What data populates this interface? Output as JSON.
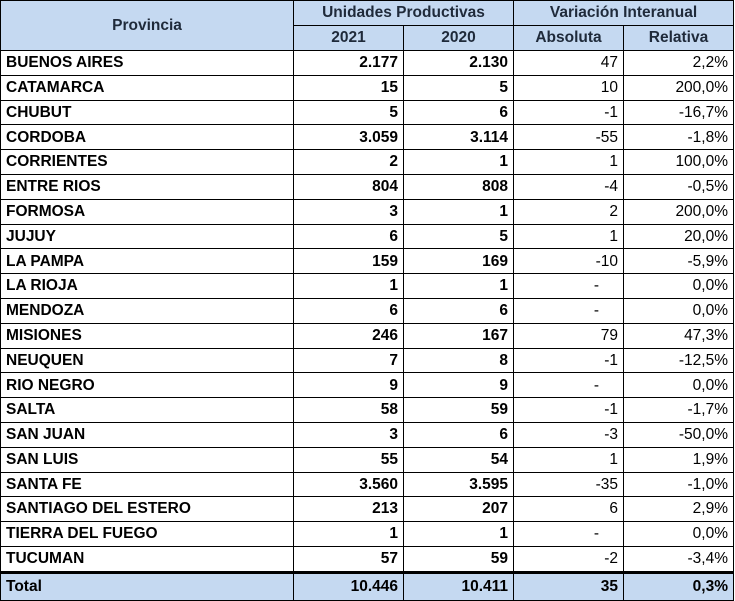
{
  "header": {
    "provincia": "Provincia",
    "unidades": "Unidades Productivas",
    "variacion": "Variación Interanual",
    "y2021": "2021",
    "y2020": "2020",
    "absoluta": "Absoluta",
    "relativa": "Relativa"
  },
  "rows": [
    {
      "prov": "BUENOS AIRES",
      "y2021": "2.177",
      "y2020": "2.130",
      "abs": "47",
      "rel": "2,2%"
    },
    {
      "prov": "CATAMARCA",
      "y2021": "15",
      "y2020": "5",
      "abs": "10",
      "rel": "200,0%"
    },
    {
      "prov": "CHUBUT",
      "y2021": "5",
      "y2020": "6",
      "abs": "-1",
      "rel": "-16,7%"
    },
    {
      "prov": "CORDOBA",
      "y2021": "3.059",
      "y2020": "3.114",
      "abs": "-55",
      "rel": "-1,8%"
    },
    {
      "prov": "CORRIENTES",
      "y2021": "2",
      "y2020": "1",
      "abs": "1",
      "rel": "100,0%"
    },
    {
      "prov": "ENTRE RIOS",
      "y2021": "804",
      "y2020": "808",
      "abs": "-4",
      "rel": "-0,5%"
    },
    {
      "prov": "FORMOSA",
      "y2021": "3",
      "y2020": "1",
      "abs": "2",
      "rel": "200,0%"
    },
    {
      "prov": "JUJUY",
      "y2021": "6",
      "y2020": "5",
      "abs": "1",
      "rel": "20,0%"
    },
    {
      "prov": "LA PAMPA",
      "y2021": "159",
      "y2020": "169",
      "abs": "-10",
      "rel": "-5,9%"
    },
    {
      "prov": "LA RIOJA",
      "y2021": "1",
      "y2020": "1",
      "abs": "-",
      "rel": "0,0%"
    },
    {
      "prov": "MENDOZA",
      "y2021": "6",
      "y2020": "6",
      "abs": "-",
      "rel": "0,0%"
    },
    {
      "prov": "MISIONES",
      "y2021": "246",
      "y2020": "167",
      "abs": "79",
      "rel": "47,3%"
    },
    {
      "prov": "NEUQUEN",
      "y2021": "7",
      "y2020": "8",
      "abs": "-1",
      "rel": "-12,5%"
    },
    {
      "prov": "RIO NEGRO",
      "y2021": "9",
      "y2020": "9",
      "abs": "-",
      "rel": "0,0%"
    },
    {
      "prov": "SALTA",
      "y2021": "58",
      "y2020": "59",
      "abs": "-1",
      "rel": "-1,7%"
    },
    {
      "prov": "SAN JUAN",
      "y2021": "3",
      "y2020": "6",
      "abs": "-3",
      "rel": "-50,0%"
    },
    {
      "prov": "SAN LUIS",
      "y2021": "55",
      "y2020": "54",
      "abs": "1",
      "rel": "1,9%"
    },
    {
      "prov": "SANTA FE",
      "y2021": "3.560",
      "y2020": "3.595",
      "abs": "-35",
      "rel": "-1,0%"
    },
    {
      "prov": "SANTIAGO DEL ESTERO",
      "y2021": "213",
      "y2020": "207",
      "abs": "6",
      "rel": "2,9%"
    },
    {
      "prov": "TIERRA DEL FUEGO",
      "y2021": "1",
      "y2020": "1",
      "abs": "-",
      "rel": "0,0%"
    },
    {
      "prov": "TUCUMAN",
      "y2021": "57",
      "y2020": "59",
      "abs": "-2",
      "rel": "-3,4%"
    }
  ],
  "total": {
    "prov": "Total",
    "y2021": "10.446",
    "y2020": "10.411",
    "abs": "35",
    "rel": "0,3%"
  }
}
